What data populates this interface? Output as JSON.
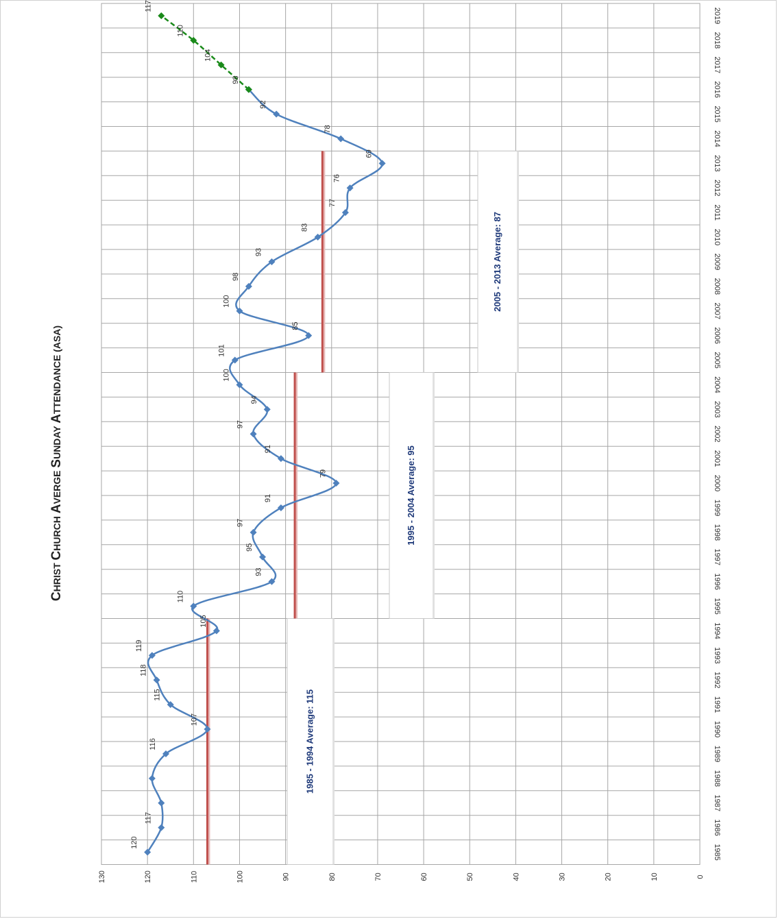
{
  "chart_data": {
    "type": "line",
    "title_big": "C",
    "title_a": "HRIST ",
    "title_b": "C",
    "title_c": "HURCH ",
    "title_d": "A",
    "title_e": "VERGE ",
    "title_f": "S",
    "title_g": "UNDAY ",
    "title_h": "A",
    "title_i": "TTENDANCE (ASA)",
    "x": [
      "1985",
      "1986",
      "1987",
      "1988",
      "1989",
      "1990",
      "1991",
      "1992",
      "1993",
      "1994",
      "1995",
      "1996",
      "1997",
      "1998",
      "1999",
      "2000",
      "2001",
      "2002",
      "2003",
      "2004",
      "2005",
      "2006",
      "2007",
      "2008",
      "2009",
      "2010",
      "2011",
      "2012",
      "2013",
      "2014",
      "2015",
      "2016",
      "2017",
      "2018",
      "2019"
    ],
    "ylim": [
      0,
      130
    ],
    "yticks": [
      0,
      10,
      20,
      30,
      40,
      50,
      60,
      70,
      80,
      90,
      100,
      110,
      120,
      130
    ],
    "grid": true,
    "series": [
      {
        "color": "#4f81bd",
        "style": "solid",
        "x": [
          "1985",
          "1986",
          "1987",
          "1988",
          "1989",
          "1990",
          "1991",
          "1992",
          "1993",
          "1994",
          "1995",
          "1996",
          "1997",
          "1998",
          "1999",
          "2000",
          "2001",
          "2002",
          "2003",
          "2004",
          "2005",
          "2006",
          "2007",
          "2008",
          "2009",
          "2010",
          "2011",
          "2012",
          "2013",
          "2014",
          "2015",
          "2016"
        ],
        "values": [
          120,
          117,
          117,
          119,
          116,
          107,
          115,
          118,
          119,
          105,
          110,
          93,
          95,
          97,
          91,
          79,
          91,
          97,
          94,
          100,
          101,
          85,
          100,
          98,
          93,
          83,
          77,
          76,
          69,
          78,
          92,
          98
        ],
        "labels": [
          "120",
          "117",
          "",
          "",
          "116",
          "107",
          "115",
          "118",
          "119",
          "105",
          "110",
          "93",
          "95",
          "97",
          "91",
          "79",
          "91",
          "97",
          "94",
          "100",
          "101",
          "85",
          "100",
          "98",
          "93",
          "83",
          "77",
          "76",
          "69",
          "78",
          "92",
          ""
        ]
      },
      {
        "color": "#1a8a1a",
        "style": "dashed",
        "x": [
          "2016",
          "2017",
          "2018",
          "2019"
        ],
        "values": [
          98,
          104,
          110,
          117
        ],
        "labels": [
          "98",
          "104",
          "110",
          "117"
        ]
      }
    ],
    "averages": [
      {
        "label": "1985 - 1994 Average: 115",
        "from": "1985",
        "to": "1994",
        "line_value": 107
      },
      {
        "label": "1995 - 2004 Average: 95",
        "from": "1995",
        "to": "2004",
        "line_value": 88
      },
      {
        "label": "2005 - 2013 Average: 87",
        "from": "2005",
        "to": "2013",
        "line_value": 82
      }
    ],
    "average_line_color": "#c0504d"
  }
}
